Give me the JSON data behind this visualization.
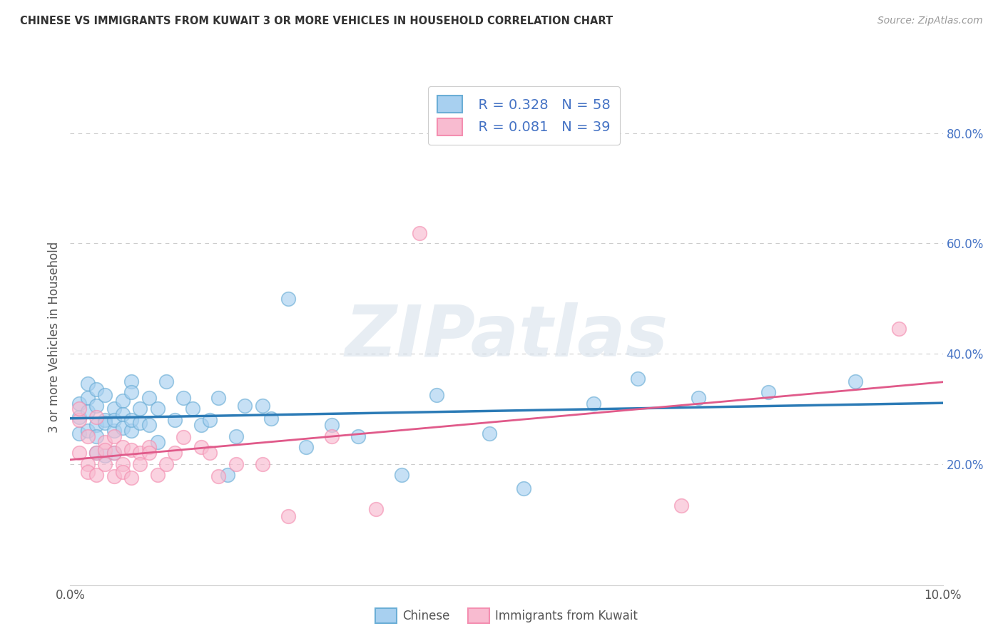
{
  "title": "CHINESE VS IMMIGRANTS FROM KUWAIT 3 OR MORE VEHICLES IN HOUSEHOLD CORRELATION CHART",
  "source": "Source: ZipAtlas.com",
  "ylabel": "3 or more Vehicles in Household",
  "xlim": [
    0.0,
    0.1
  ],
  "ylim": [
    -0.02,
    0.88
  ],
  "yticks_right": [
    0.2,
    0.4,
    0.6,
    0.8
  ],
  "ytick_right_labels": [
    "20.0%",
    "40.0%",
    "60.0%",
    "80.0%"
  ],
  "chinese_R": 0.328,
  "chinese_N": 58,
  "kuwait_R": 0.081,
  "kuwait_N": 39,
  "chinese_color": "#a8d0f0",
  "kuwait_color": "#f8bbd0",
  "chinese_edge_color": "#6baed6",
  "kuwait_edge_color": "#f48fb1",
  "chinese_line_color": "#2c7bb6",
  "kuwait_line_color": "#e05a8a",
  "watermark": "ZIPatlas",
  "legend_labels": [
    "Chinese",
    "Immigrants from Kuwait"
  ],
  "chinese_x": [
    0.001,
    0.001,
    0.001,
    0.002,
    0.002,
    0.002,
    0.002,
    0.003,
    0.003,
    0.003,
    0.003,
    0.003,
    0.004,
    0.004,
    0.004,
    0.004,
    0.005,
    0.005,
    0.005,
    0.005,
    0.006,
    0.006,
    0.006,
    0.007,
    0.007,
    0.007,
    0.007,
    0.008,
    0.008,
    0.009,
    0.009,
    0.01,
    0.01,
    0.011,
    0.012,
    0.013,
    0.014,
    0.015,
    0.016,
    0.017,
    0.018,
    0.019,
    0.02,
    0.022,
    0.023,
    0.025,
    0.027,
    0.03,
    0.033,
    0.038,
    0.042,
    0.048,
    0.052,
    0.06,
    0.065,
    0.072,
    0.08,
    0.09
  ],
  "chinese_y": [
    0.285,
    0.31,
    0.255,
    0.32,
    0.345,
    0.26,
    0.295,
    0.22,
    0.27,
    0.305,
    0.335,
    0.25,
    0.28,
    0.325,
    0.275,
    0.215,
    0.26,
    0.3,
    0.22,
    0.28,
    0.315,
    0.29,
    0.265,
    0.26,
    0.35,
    0.28,
    0.33,
    0.3,
    0.275,
    0.27,
    0.32,
    0.24,
    0.3,
    0.35,
    0.28,
    0.32,
    0.3,
    0.27,
    0.28,
    0.32,
    0.18,
    0.25,
    0.305,
    0.305,
    0.282,
    0.5,
    0.23,
    0.27,
    0.25,
    0.18,
    0.325,
    0.255,
    0.155,
    0.31,
    0.355,
    0.32,
    0.33,
    0.35
  ],
  "kuwait_x": [
    0.001,
    0.001,
    0.001,
    0.002,
    0.002,
    0.002,
    0.003,
    0.003,
    0.003,
    0.004,
    0.004,
    0.004,
    0.005,
    0.005,
    0.005,
    0.006,
    0.006,
    0.006,
    0.007,
    0.007,
    0.008,
    0.008,
    0.009,
    0.009,
    0.01,
    0.011,
    0.012,
    0.013,
    0.015,
    0.016,
    0.017,
    0.019,
    0.022,
    0.025,
    0.03,
    0.035,
    0.04,
    0.07,
    0.095
  ],
  "kuwait_y": [
    0.22,
    0.28,
    0.3,
    0.2,
    0.25,
    0.185,
    0.22,
    0.18,
    0.285,
    0.24,
    0.2,
    0.225,
    0.22,
    0.178,
    0.25,
    0.2,
    0.23,
    0.185,
    0.225,
    0.175,
    0.22,
    0.2,
    0.23,
    0.22,
    0.18,
    0.2,
    0.22,
    0.248,
    0.23,
    0.22,
    0.178,
    0.2,
    0.2,
    0.105,
    0.25,
    0.118,
    0.618,
    0.125,
    0.445
  ]
}
